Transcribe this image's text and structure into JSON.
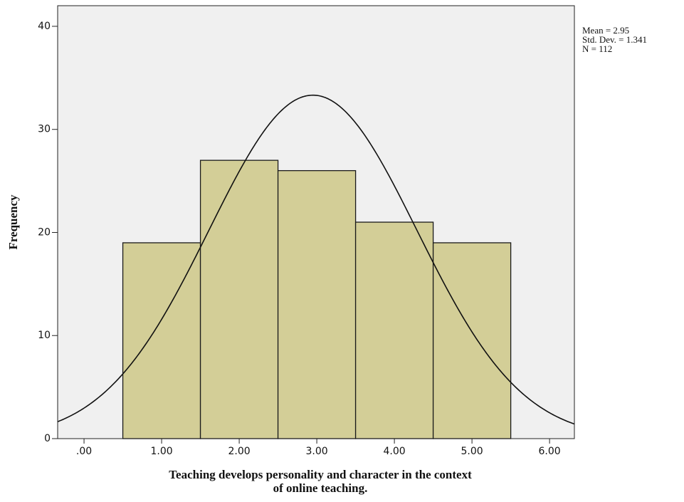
{
  "chart_data": {
    "type": "histogram",
    "bins": [
      0.5,
      1.5,
      2.5,
      3.5,
      4.5,
      5.5
    ],
    "values": [
      19,
      27,
      26,
      21,
      19
    ],
    "color": "#d3ce97",
    "edge_color": "#1a1a1a",
    "background": "#f0f0f0",
    "xlim": [
      -0.34,
      6.32
    ],
    "ylim": [
      0,
      42
    ],
    "xticks": [
      {
        "value": 0,
        "label": ".00"
      },
      {
        "value": 1,
        "label": "1.00"
      },
      {
        "value": 2,
        "label": "2.00"
      },
      {
        "value": 3,
        "label": "3.00"
      },
      {
        "value": 4,
        "label": "4.00"
      },
      {
        "value": 5,
        "label": "5.00"
      },
      {
        "value": 6,
        "label": "6.00"
      }
    ],
    "yticks": [
      0,
      10,
      20,
      30,
      40
    ],
    "ylabel": "Frequency",
    "xlabel": [
      "Teaching develops personality and character in the context",
      "of online teaching."
    ],
    "stats": {
      "values": [
        2.95,
        1.341,
        112
      ],
      "value_labels": [
        "Mean = 2.95",
        "Std. Dev. = 1.341",
        "N = 112"
      ]
    }
  }
}
